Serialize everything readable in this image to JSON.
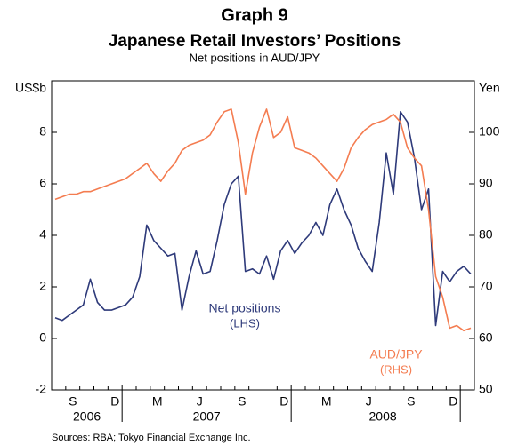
{
  "chart_data": {
    "type": "line",
    "title": "Graph 9",
    "heading": "Japanese Retail Investors’ Positions",
    "subtitle": "Net positions in AUD/JPY",
    "y_label": "US$b",
    "y2_label": "Yen",
    "source": "Sources: RBA; Tokyo Financial Exchange Inc.",
    "categories": [
      null,
      null,
      null,
      "S",
      null,
      null,
      null,
      null,
      null,
      "D",
      null,
      null,
      null,
      null,
      null,
      "M",
      null,
      null,
      null,
      null,
      null,
      "J",
      null,
      null,
      null,
      null,
      null,
      "S",
      null,
      null,
      null,
      null,
      null,
      "D",
      null,
      null,
      null,
      null,
      null,
      "M",
      null,
      null,
      null,
      null,
      null,
      "J",
      null,
      null,
      null,
      null,
      null,
      "S",
      null,
      null,
      null,
      null,
      null,
      "D",
      null,
      null
    ],
    "years": [
      "2006",
      "2007",
      "2008"
    ],
    "ylim": [
      -2,
      10
    ],
    "yticks": [
      -2,
      0,
      2,
      4,
      6,
      8
    ],
    "y2lim": [
      50,
      110
    ],
    "y2ticks": [
      50,
      60,
      70,
      80,
      90,
      100
    ],
    "series": [
      {
        "name": "Net positions",
        "note": "(LHS)",
        "color": "#2e3a7a",
        "values": [
          0.8,
          0.7,
          0.9,
          1.1,
          1.3,
          2.3,
          1.4,
          1.1,
          1.1,
          1.2,
          1.3,
          1.6,
          2.4,
          4.4,
          3.8,
          3.5,
          3.2,
          3.3,
          1.1,
          2.4,
          3.4,
          2.5,
          2.6,
          3.8,
          5.2,
          6.0,
          6.3,
          2.6,
          2.7,
          2.5,
          3.2,
          2.3,
          3.4,
          3.8,
          3.3,
          3.7,
          4.0,
          4.5,
          4.0,
          5.2,
          5.8,
          5.0,
          4.4,
          3.5,
          3.0,
          2.6,
          4.5,
          7.2,
          5.6,
          8.8,
          8.4,
          7.0,
          5.0,
          5.8,
          0.5,
          2.6,
          2.2,
          2.6,
          2.8,
          2.5
        ]
      },
      {
        "name": "AUD/JPY",
        "note": "(RHS)",
        "color": "#f47c50",
        "axis": "y2",
        "values": [
          87,
          87.5,
          88,
          88,
          88.5,
          88.5,
          89,
          89.5,
          90,
          90.5,
          91,
          92,
          93,
          94,
          92,
          90.5,
          92.5,
          94,
          96.5,
          97.5,
          98,
          98.5,
          99.5,
          102,
          104,
          104.5,
          98,
          88,
          96,
          101,
          104.5,
          99,
          100,
          103,
          97,
          96.5,
          96,
          95,
          93.5,
          92,
          90.5,
          93,
          97,
          99,
          100.5,
          101.5,
          102,
          102.5,
          103.5,
          102,
          97,
          95,
          93.5,
          85,
          72,
          68,
          62,
          62.5,
          61.5,
          62
        ]
      }
    ]
  }
}
